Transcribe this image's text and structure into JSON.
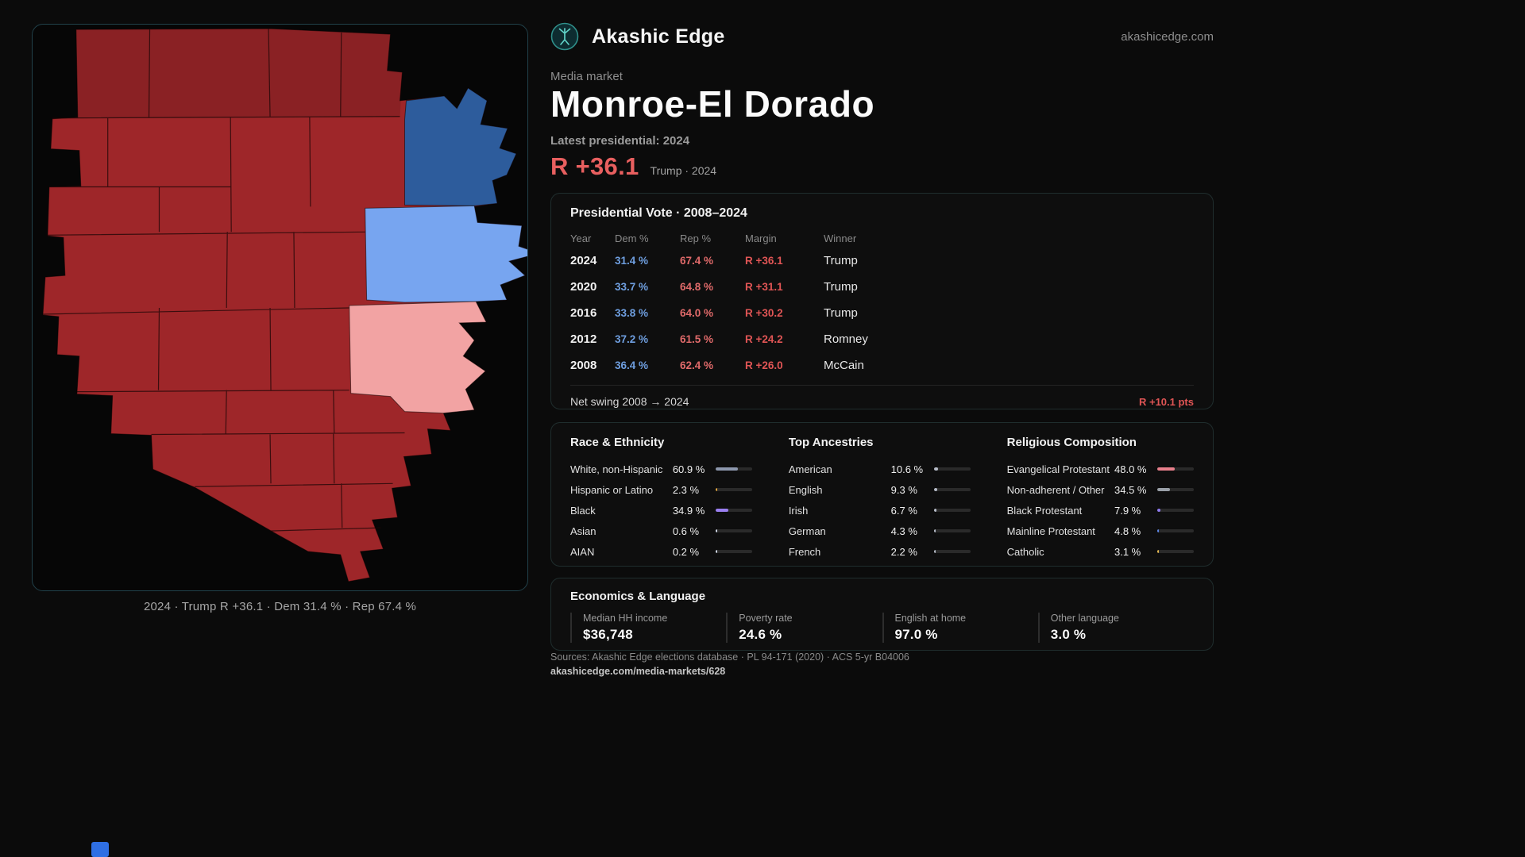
{
  "page": {
    "brand": "Akashic Edge",
    "domain": "akashicedge.com",
    "eyebrow": "Media market",
    "title": "Monroe-El Dorado",
    "latest_label": "Latest presidential: 2024",
    "headline_margin": "R +36.1",
    "headline_sub": "Trump · 2024"
  },
  "map": {
    "caption": "2024 · Trump R +36.1 · Dem 31.4 % · Rep 67.4 %",
    "colors": {
      "rep_dark": "#9e2629",
      "dem_dark": "#2d5c9c",
      "dem_light": "#77a5f0",
      "rep_light": "#f2a3a3"
    }
  },
  "vote": {
    "title": "Presidential Vote · 2008–2024",
    "headers": [
      "Year",
      "Dem %",
      "Rep %",
      "Margin",
      "Winner"
    ],
    "rows": [
      {
        "year": "2024",
        "dem": "31.4 %",
        "rep": "67.4 %",
        "margin": "R +36.1",
        "winner": "Trump"
      },
      {
        "year": "2020",
        "dem": "33.7 %",
        "rep": "64.8 %",
        "margin": "R +31.1",
        "winner": "Trump"
      },
      {
        "year": "2016",
        "dem": "33.8 %",
        "rep": "64.0 %",
        "margin": "R +30.2",
        "winner": "Trump"
      },
      {
        "year": "2012",
        "dem": "37.2 %",
        "rep": "61.5 %",
        "margin": "R +24.2",
        "winner": "Romney"
      },
      {
        "year": "2008",
        "dem": "36.4 %",
        "rep": "62.4 %",
        "margin": "R +26.0",
        "winner": "McCain"
      }
    ],
    "net_swing_label": "Net swing 2008 → 2024",
    "net_swing_value": "R +10.1 pts"
  },
  "demographics": {
    "race": {
      "title": "Race & Ethnicity",
      "rows": [
        {
          "label": "White, non-Hispanic",
          "value": "60.9 %",
          "pct": 60.9,
          "color": "#8d97ad"
        },
        {
          "label": "Hispanic or Latino",
          "value": "2.3 %",
          "pct": 2.3,
          "color": "#e0a43e"
        },
        {
          "label": "Black",
          "value": "34.9 %",
          "pct": 34.9,
          "color": "#9a7ff0"
        },
        {
          "label": "Asian",
          "value": "0.6 %",
          "pct": 0.6,
          "color": "#cfd6e4"
        },
        {
          "label": "AIAN",
          "value": "0.2 %",
          "pct": 0.2,
          "color": "#cfd6e4"
        }
      ]
    },
    "ancestries": {
      "title": "Top Ancestries",
      "rows": [
        {
          "label": "American",
          "value": "10.6 %",
          "pct": 10.6,
          "color": "#b7bdc9"
        },
        {
          "label": "English",
          "value": "9.3 %",
          "pct": 9.3,
          "color": "#b7bdc9"
        },
        {
          "label": "Irish",
          "value": "6.7 %",
          "pct": 6.7,
          "color": "#b7bdc9"
        },
        {
          "label": "German",
          "value": "4.3 %",
          "pct": 4.3,
          "color": "#b7bdc9"
        },
        {
          "label": "French",
          "value": "2.2 %",
          "pct": 2.2,
          "color": "#b7bdc9"
        }
      ]
    },
    "religion": {
      "title": "Religious Composition",
      "rows": [
        {
          "label": "Evangelical Protestant",
          "value": "48.0 %",
          "pct": 48.0,
          "color": "#e8808c"
        },
        {
          "label": "Non-adherent / Other",
          "value": "34.5 %",
          "pct": 34.5,
          "color": "#9aa0a8"
        },
        {
          "label": "Black Protestant",
          "value": "7.9 %",
          "pct": 7.9,
          "color": "#8f7bf0"
        },
        {
          "label": "Mainline Protestant",
          "value": "4.8 %",
          "pct": 4.8,
          "color": "#5c86e8"
        },
        {
          "label": "Catholic",
          "value": "3.1 %",
          "pct": 3.1,
          "color": "#e3b84f"
        }
      ]
    }
  },
  "economics": {
    "title": "Economics & Language",
    "stats": [
      {
        "label": "Median HH income",
        "value": "$36,748"
      },
      {
        "label": "Poverty rate",
        "value": "24.6 %"
      },
      {
        "label": "English at home",
        "value": "97.0 %"
      },
      {
        "label": "Other language",
        "value": "3.0 %"
      }
    ]
  },
  "footer": {
    "sources": "Sources: Akashic Edge elections database · PL 94-171 (2020) · ACS 5-yr B04006",
    "permalink": "akashicedge.com/media-markets/628"
  }
}
